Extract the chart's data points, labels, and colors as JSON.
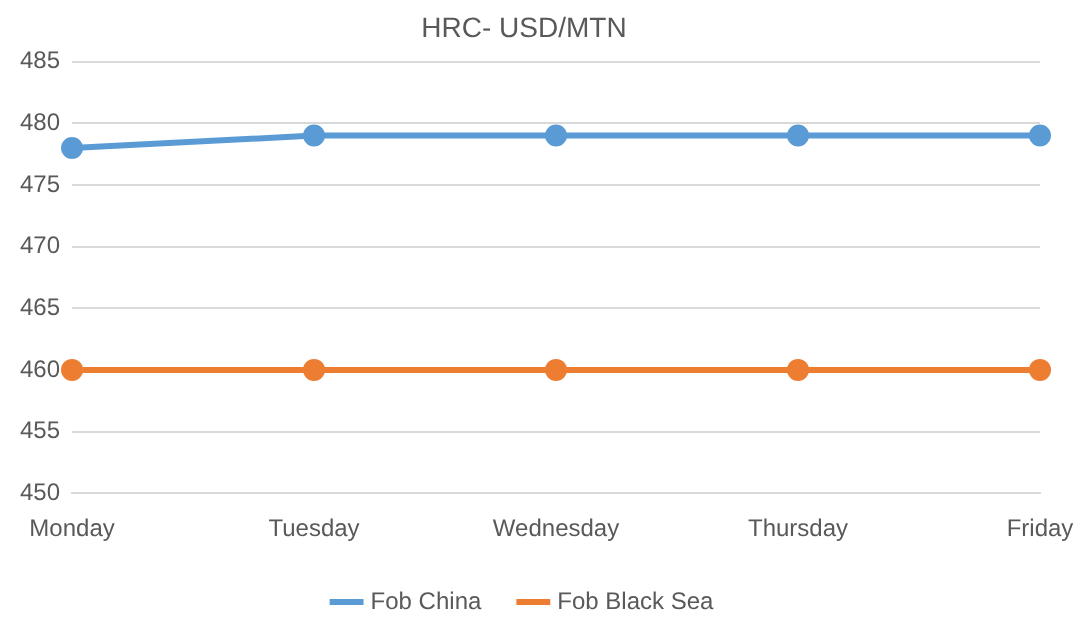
{
  "chart_data": {
    "type": "line",
    "title": "HRC- USD/MTN",
    "categories": [
      "Monday",
      "Tuesday",
      "Wednesday",
      "Thursday",
      "Friday"
    ],
    "series": [
      {
        "name": "Fob China",
        "color": "#5b9bd5",
        "values": [
          478,
          479,
          479,
          479,
          479
        ]
      },
      {
        "name": "Fob Black Sea",
        "color": "#ed7d31",
        "values": [
          460,
          460,
          460,
          460,
          460
        ]
      }
    ],
    "ylim": [
      450,
      485
    ],
    "yticks": [
      450,
      455,
      460,
      465,
      470,
      475,
      480,
      485
    ],
    "grid": "y",
    "legend": "bottom",
    "marker": "circle",
    "line_style": "solid"
  }
}
